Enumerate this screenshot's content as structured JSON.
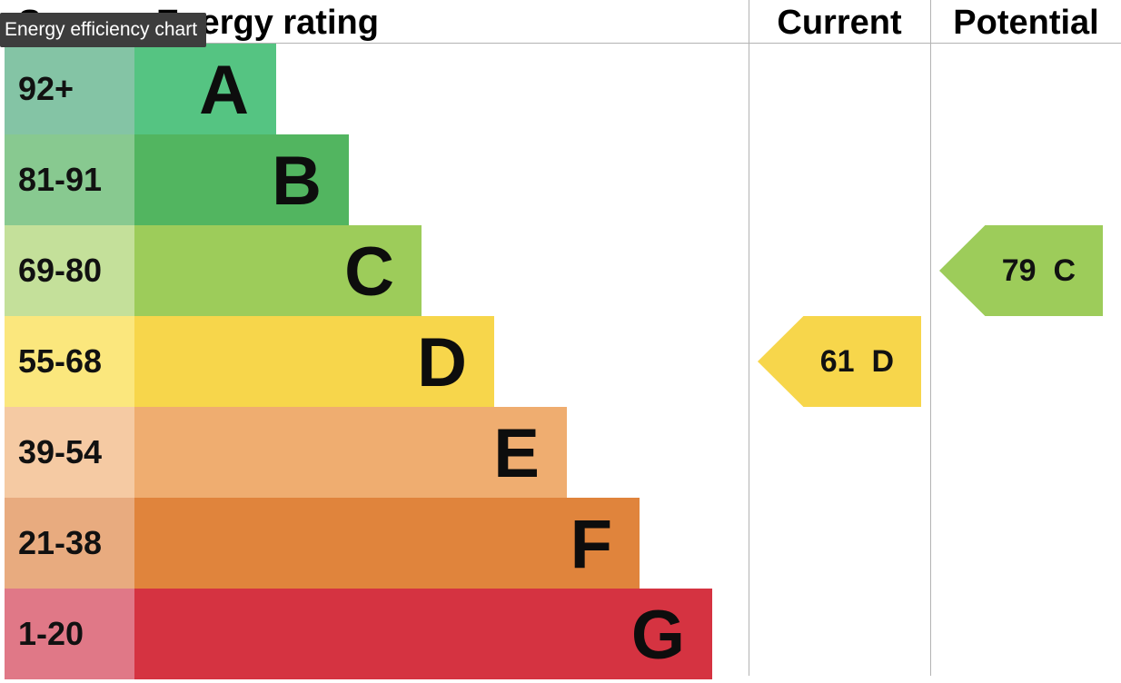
{
  "header": {
    "score": "Score",
    "rating": "Energy rating",
    "current": "Current",
    "potential": "Potential"
  },
  "tooltip": "Energy efficiency chart",
  "chart_data": {
    "type": "bar",
    "bands": [
      {
        "score": "92+",
        "letter": "A",
        "color": "#55c482",
        "score_color": "#84c4a5"
      },
      {
        "score": "81-91",
        "letter": "B",
        "color": "#52b560",
        "score_color": "#88c990"
      },
      {
        "score": "69-80",
        "letter": "C",
        "color": "#9dcc5a",
        "score_color": "#c4e09a"
      },
      {
        "score": "55-68",
        "letter": "D",
        "color": "#f7d64b",
        "score_color": "#fbe77d"
      },
      {
        "score": "39-54",
        "letter": "E",
        "color": "#efad70",
        "score_color": "#f5caa3"
      },
      {
        "score": "21-38",
        "letter": "F",
        "color": "#e0843c",
        "score_color": "#e8ab7f"
      },
      {
        "score": "1-20",
        "letter": "G",
        "color": "#d53341",
        "score_color": "#e07887"
      }
    ],
    "current": {
      "value": 61,
      "letter": "D",
      "label": "61  D",
      "color": "#f7d64b"
    },
    "potential": {
      "value": 79,
      "letter": "C",
      "label": "79  C",
      "color": "#9dcc5a"
    }
  }
}
